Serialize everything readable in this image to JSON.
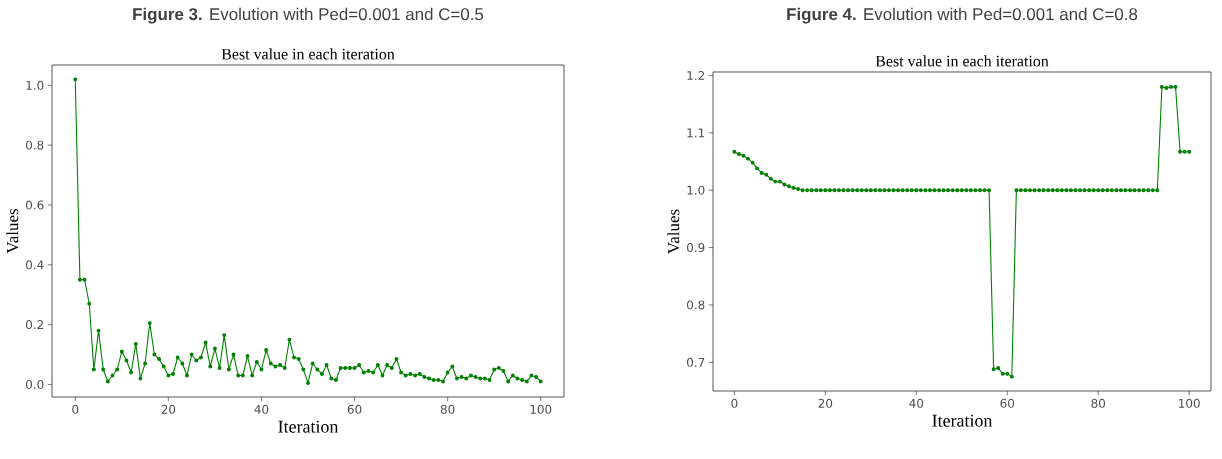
{
  "chart_data": [
    {
      "type": "line",
      "title": "Best value in each iteration",
      "xlabel": "Iteration",
      "ylabel": "Values",
      "annotations": [
        "**Figure 3.** Evolution with Ped=0.001 and C=0.5"
      ],
      "marker": "circle",
      "line_style": "solid",
      "xlim": [
        -5,
        105
      ],
      "ylim": [
        -0.042,
        1.068
      ],
      "xticks": [
        0,
        20,
        40,
        60,
        80,
        100
      ],
      "yticks": [
        {
          "value": 0,
          "label": "0.0"
        },
        {
          "value": 0.2,
          "label": "0.2"
        },
        {
          "value": 0.4,
          "label": "0.4"
        },
        {
          "value": 0.6,
          "label": "0.6"
        },
        {
          "value": 0.8,
          "label": "0.8"
        },
        {
          "value": 1.0,
          "label": "1.0"
        }
      ],
      "x": [
        0,
        1,
        2,
        3,
        4,
        5,
        6,
        7,
        8,
        9,
        10,
        11,
        12,
        13,
        14,
        15,
        16,
        17,
        18,
        19,
        20,
        21,
        22,
        23,
        24,
        25,
        26,
        27,
        28,
        29,
        30,
        31,
        32,
        33,
        34,
        35,
        36,
        37,
        38,
        39,
        40,
        41,
        42,
        43,
        44,
        45,
        46,
        47,
        48,
        49,
        50,
        51,
        52,
        53,
        54,
        55,
        56,
        57,
        58,
        59,
        60,
        61,
        62,
        63,
        64,
        65,
        66,
        67,
        68,
        69,
        70,
        71,
        72,
        73,
        74,
        75,
        76,
        77,
        78,
        79,
        80,
        81,
        82,
        83,
        84,
        85,
        86,
        87,
        88,
        89,
        90,
        91,
        92,
        93,
        94,
        95,
        96,
        97,
        98,
        99,
        100
      ],
      "series": [
        {
          "color": "#008000",
          "values": [
            1.02,
            0.35,
            0.35,
            0.27,
            0.05,
            0.18,
            0.05,
            0.01,
            0.03,
            0.05,
            0.11,
            0.08,
            0.04,
            0.135,
            0.02,
            0.07,
            0.205,
            0.1,
            0.085,
            0.06,
            0.03,
            0.035,
            0.09,
            0.07,
            0.03,
            0.1,
            0.08,
            0.09,
            0.14,
            0.06,
            0.12,
            0.055,
            0.165,
            0.05,
            0.1,
            0.03,
            0.03,
            0.095,
            0.03,
            0.075,
            0.05,
            0.115,
            0.07,
            0.06,
            0.065,
            0.055,
            0.15,
            0.09,
            0.085,
            0.05,
            0.005,
            0.07,
            0.05,
            0.035,
            0.065,
            0.02,
            0.015,
            0.055,
            0.055,
            0.055,
            0.055,
            0.065,
            0.04,
            0.045,
            0.04,
            0.065,
            0.03,
            0.065,
            0.055,
            0.085,
            0.04,
            0.03,
            0.035,
            0.03,
            0.035,
            0.025,
            0.02,
            0.015,
            0.015,
            0.01,
            0.04,
            0.06,
            0.02,
            0.025,
            0.02,
            0.03,
            0.025,
            0.02,
            0.02,
            0.015,
            0.05,
            0.055,
            0.045,
            0.01,
            0.03,
            0.02,
            0.015,
            0.01,
            0.03,
            0.025,
            0.01
          ]
        }
      ]
    },
    {
      "type": "line",
      "title": "Best value in each iteration",
      "xlabel": "Iteration",
      "ylabel": "Values",
      "annotations": [
        "**Figure 4.** Evolution with Ped=0.001 and C=0.8"
      ],
      "marker": "circle",
      "line_style": "solid",
      "xlim": [
        -4.7,
        104.8
      ],
      "ylim": [
        0.65,
        1.206
      ],
      "xticks": [
        0,
        20,
        40,
        60,
        80,
        100
      ],
      "yticks": [
        0.7,
        0.8,
        0.9,
        {
          "value": 1.0,
          "label": "1.0"
        },
        1.1,
        1.2
      ],
      "x": [
        0,
        1,
        2,
        3,
        4,
        5,
        6,
        7,
        8,
        9,
        10,
        11,
        12,
        13,
        14,
        15,
        16,
        17,
        18,
        19,
        20,
        21,
        22,
        23,
        24,
        25,
        26,
        27,
        28,
        29,
        30,
        31,
        32,
        33,
        34,
        35,
        36,
        37,
        38,
        39,
        40,
        41,
        42,
        43,
        44,
        45,
        46,
        47,
        48,
        49,
        50,
        51,
        52,
        53,
        54,
        55,
        56,
        57,
        58,
        59,
        60,
        61,
        62,
        63,
        64,
        65,
        66,
        67,
        68,
        69,
        70,
        71,
        72,
        73,
        74,
        75,
        76,
        77,
        78,
        79,
        80,
        81,
        82,
        83,
        84,
        85,
        86,
        87,
        88,
        89,
        90,
        91,
        92,
        93,
        94,
        95,
        96,
        97,
        98,
        99,
        100
      ],
      "series": [
        {
          "color": "#008000",
          "values": [
            1.067,
            1.063,
            1.06,
            1.055,
            1.048,
            1.038,
            1.03,
            1.027,
            1.02,
            1.015,
            1.015,
            1.01,
            1.007,
            1.004,
            1.002,
            1.0,
            1.0,
            1.0,
            1.0,
            1.0,
            1.0,
            1.0,
            1.0,
            1.0,
            1.0,
            1.0,
            1.0,
            1.0,
            1.0,
            1.0,
            1.0,
            1.0,
            1.0,
            1.0,
            1.0,
            1.0,
            1.0,
            1.0,
            1.0,
            1.0,
            1.0,
            1.0,
            1.0,
            1.0,
            1.0,
            1.0,
            1.0,
            1.0,
            1.0,
            1.0,
            1.0,
            1.0,
            1.0,
            1.0,
            1.0,
            1.0,
            1.0,
            0.688,
            0.69,
            0.68,
            0.68,
            0.675,
            1.0,
            1.0,
            1.0,
            1.0,
            1.0,
            1.0,
            1.0,
            1.0,
            1.0,
            1.0,
            1.0,
            1.0,
            1.0,
            1.0,
            1.0,
            1.0,
            1.0,
            1.0,
            1.0,
            1.0,
            1.0,
            1.0,
            1.0,
            1.0,
            1.0,
            1.0,
            1.0,
            1.0,
            1.0,
            1.0,
            1.0,
            1.0,
            1.18,
            1.178,
            1.18,
            1.18,
            1.067,
            1.067,
            1.067
          ]
        }
      ]
    }
  ]
}
